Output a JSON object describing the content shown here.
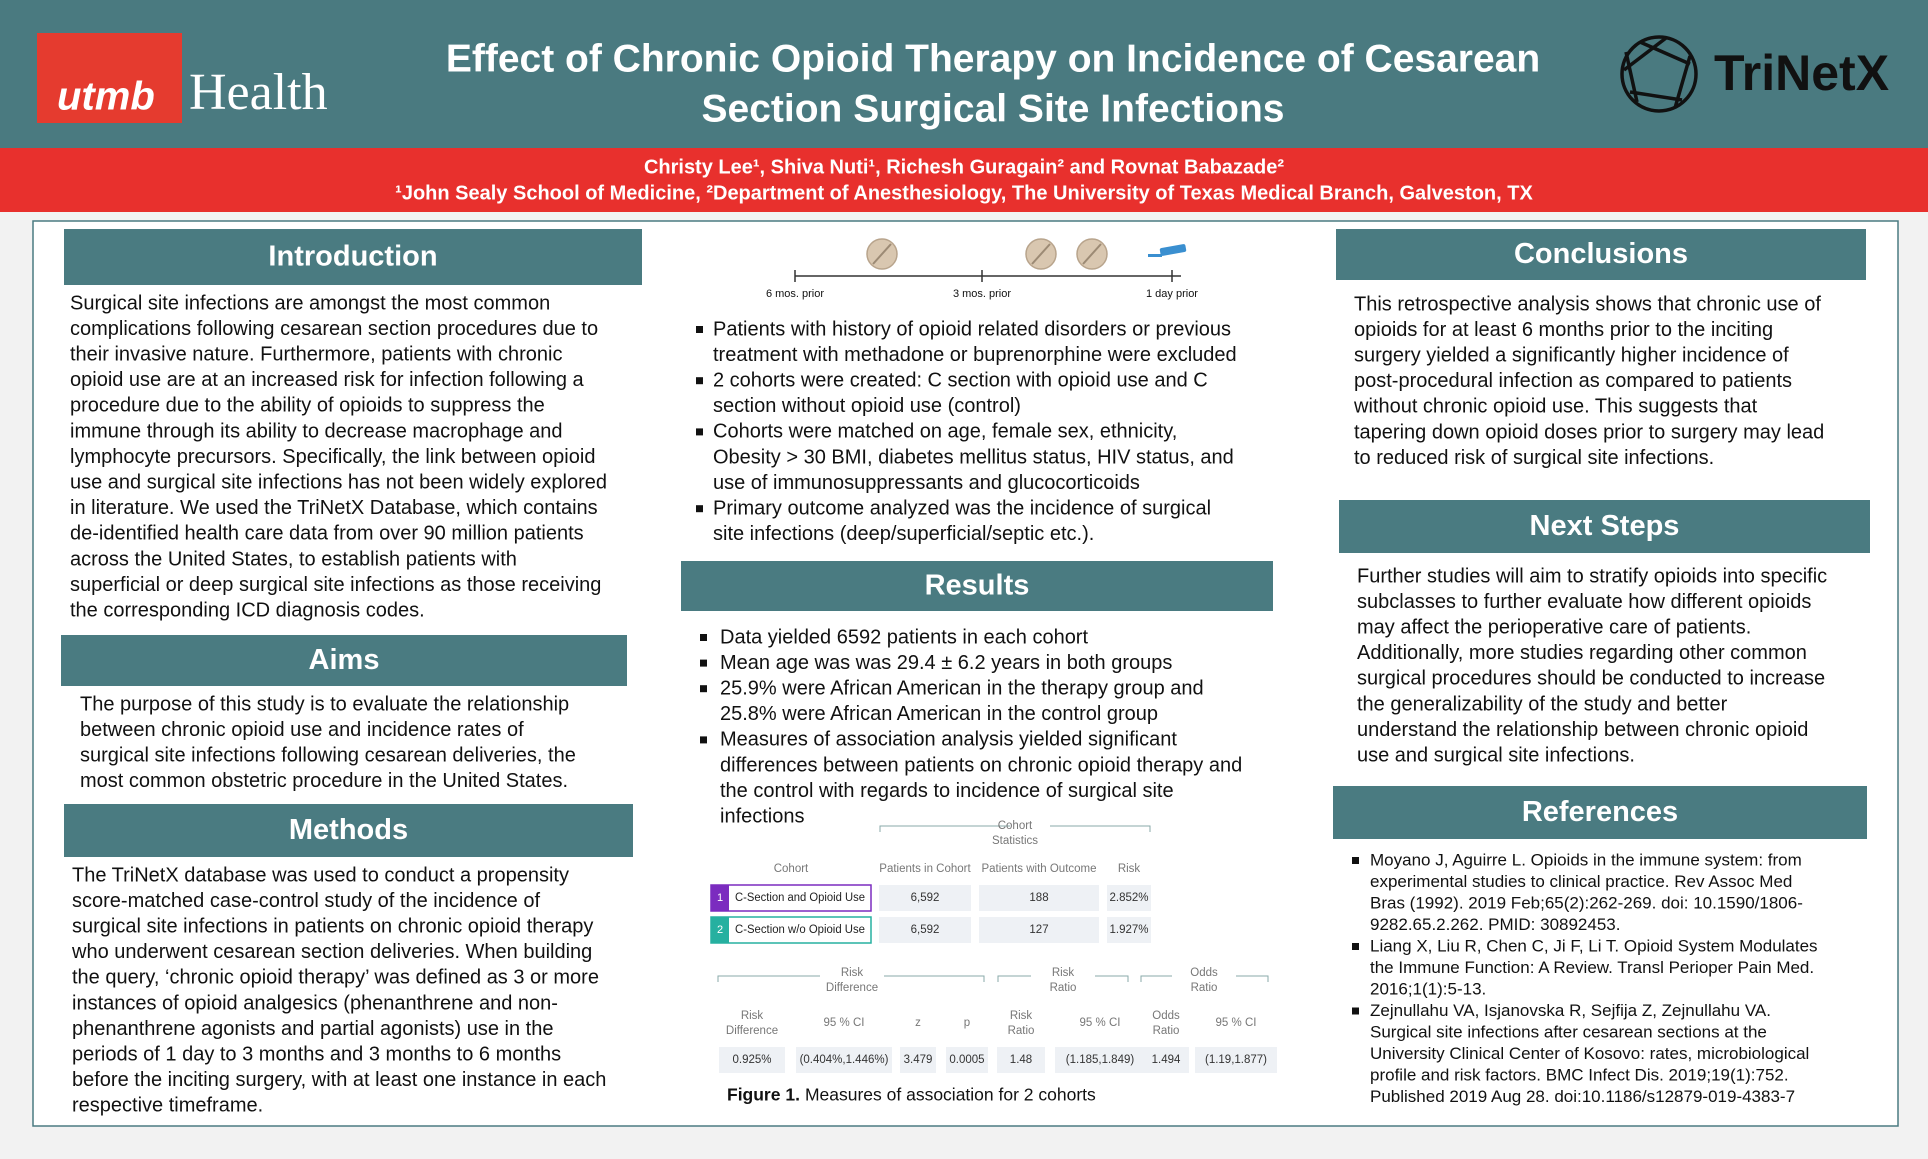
{
  "header": {
    "logo_left": {
      "mark": "utmb",
      "word": "Health"
    },
    "title_lines": [
      "Effect of Chronic Opioid Therapy on Incidence of Cesarean",
      "Section Surgical Site Infections"
    ],
    "logo_right": "TriNetX"
  },
  "byline": {
    "authors": "Christy Lee¹, Shiva Nuti¹, Richesh Guragain² and Rovnat Babazade²",
    "affiliations": "¹John Sealy School of Medicine, ²Department of Anesthesiology, The University of Texas Medical Branch, Galveston, TX"
  },
  "introduction": {
    "heading": "Introduction",
    "lines": [
      "Surgical site infections are amongst the most common",
      "complications following cesarean section procedures due to",
      "their invasive nature. Furthermore, patients with chronic",
      "opioid use are at an increased risk for infection following a",
      "procedure due to the ability of opioids to suppress the",
      "immune through its ability to decrease macrophage and",
      "lymphocyte precursors. Specifically, the link between opioid",
      "use and surgical site infections has not been widely explored",
      "in literature. We used the TriNetX Database, which contains",
      "de-identified health care data from over 90 million patients",
      "across the United States, to establish patients with",
      "superficial or deep surgical site infections as those receiving",
      "the corresponding ICD diagnosis codes."
    ]
  },
  "aims": {
    "heading": "Aims",
    "lines": [
      "The purpose of this study is to evaluate the relationship",
      "between chronic opioid use and incidence rates of",
      "surgical site infections following cesarean deliveries, the",
      "most common obstetric procedure in the United States."
    ]
  },
  "methods": {
    "heading": "Methods",
    "lines": [
      "The TriNetX database was used to conduct a propensity",
      "score-matched case-control study of the incidence of",
      "surgical site infections in patients on chronic opioid therapy",
      "who underwent cesarean section deliveries. When building",
      "the query, ‘chronic opioid therapy’ was defined as 3 or more",
      "instances of opioid analgesics (phenanthrene and non-",
      "phenanthrene agonists and partial agonists) use in the",
      "periods of 1 day to 3 months and 3 months to 6 months",
      "before the inciting surgery, with at least one instance in each",
      "respective timeframe."
    ],
    "timeline": [
      "6 mos. prior",
      "3 mos. prior",
      "1 day prior"
    ],
    "bullets": [
      [
        "Patients with history of opioid related disorders or previous",
        "treatment with methadone or buprenorphine were excluded"
      ],
      [
        "2 cohorts were created: C section with opioid use and C",
        "section without opioid use (control)"
      ],
      [
        "Cohorts were matched on age, female sex, ethnicity,",
        "Obesity > 30 BMI, diabetes mellitus status, HIV status, and",
        "use of immunosuppressants and glucocorticoids"
      ],
      [
        "Primary outcome analyzed was the incidence of surgical",
        "site infections (deep/superficial/septic etc.)."
      ]
    ]
  },
  "results": {
    "heading": "Results",
    "bullets": [
      [
        "Data yielded 6592 patients in each cohort"
      ],
      [
        "Mean age was was 29.4 ± 6.2 years in both groups"
      ],
      [
        "25.9% were African American in the therapy group and",
        "25.8% were African American in the control group"
      ],
      [
        "Measures of association analysis yielded significant",
        "differences between patients on chronic opioid therapy and",
        "the control with regards to incidence of surgical site",
        "infections"
      ]
    ]
  },
  "figure": {
    "cohort_group": [
      "Cohort",
      "Statistics"
    ],
    "columns": [
      "Cohort",
      "Patients in Cohort",
      "Patients with Outcome",
      "Risk"
    ],
    "rows": [
      {
        "index": "1",
        "cohort": "C-Section and Opioid Use",
        "cells": [
          "6,592",
          "188",
          "2.852%"
        ]
      },
      {
        "index": "2",
        "cohort": "C-Section w/o Opioid Use",
        "cells": [
          "6,592",
          "127",
          "1.927%"
        ]
      }
    ],
    "stats_groups": [
      [
        "Risk",
        "Difference"
      ],
      [
        "Risk",
        "Ratio"
      ],
      [
        "Odds",
        "Ratio"
      ]
    ],
    "stats_columns": [
      [
        "Risk",
        "Difference"
      ],
      [
        "95 % CI"
      ],
      [
        "z"
      ],
      [
        "p"
      ],
      [
        "Risk",
        "Ratio"
      ],
      [
        "95 % CI"
      ],
      [
        "Odds",
        "Ratio"
      ],
      [
        "95 % CI"
      ]
    ],
    "stats_values": [
      "0.925%",
      "(0.404%,1.446%)",
      "3.479",
      "0.0005",
      "1.48",
      "(1.185,1.849)",
      "1.494",
      "(1.19,1.877)"
    ],
    "caption_label": "Figure 1.",
    "caption": "Measures of association for 2 cohorts"
  },
  "conclusions": {
    "heading": "Conclusions",
    "lines": [
      "This retrospective analysis shows that chronic use of",
      "opioids for at least 6 months prior to the inciting",
      "surgery yielded a significantly higher incidence of",
      "post-procedural infection as compared to patients",
      "without chronic opioid use. This suggests that",
      "tapering down opioid doses prior to surgery may lead",
      "to reduced risk of surgical site infections."
    ]
  },
  "next_steps": {
    "heading": "Next Steps",
    "lines": [
      "Further studies will aim to stratify opioids into specific",
      "subclasses to further evaluate how different opioids",
      "may affect the perioperative care of patients.",
      "Additionally, more studies regarding other common",
      "surgical procedures should be conducted to increase",
      "the generalizability of the study and better",
      "understand the relationship between chronic opioid",
      "use and surgical site infections."
    ]
  },
  "references": {
    "heading": "References",
    "items": [
      [
        "Moyano J, Aguirre L. Opioids in the immune system: from",
        "experimental studies to clinical practice. Rev Assoc Med",
        "Bras (1992). 2019 Feb;65(2):262-269. doi: 10.1590/1806-",
        "9282.65.2.262. PMID: 30892453."
      ],
      [
        "Liang X, Liu R, Chen C, Ji F, Li T. Opioid System Modulates",
        "the Immune Function: A Review. Transl Perioper Pain Med.",
        "2016;1(1):5-13."
      ],
      [
        "Zejnullahu VA, Isjanovska R, Sejfija Z, Zejnullahu VA.",
        "Surgical site infections after cesarean sections at the",
        "University Clinical Center of Kosovo: rates, microbiological",
        "profile and risk factors. BMC Infect Dis. 2019;19(1):752.",
        "Published 2019 Aug 28. doi:10.1186/s12879-019-4383-7"
      ]
    ]
  }
}
